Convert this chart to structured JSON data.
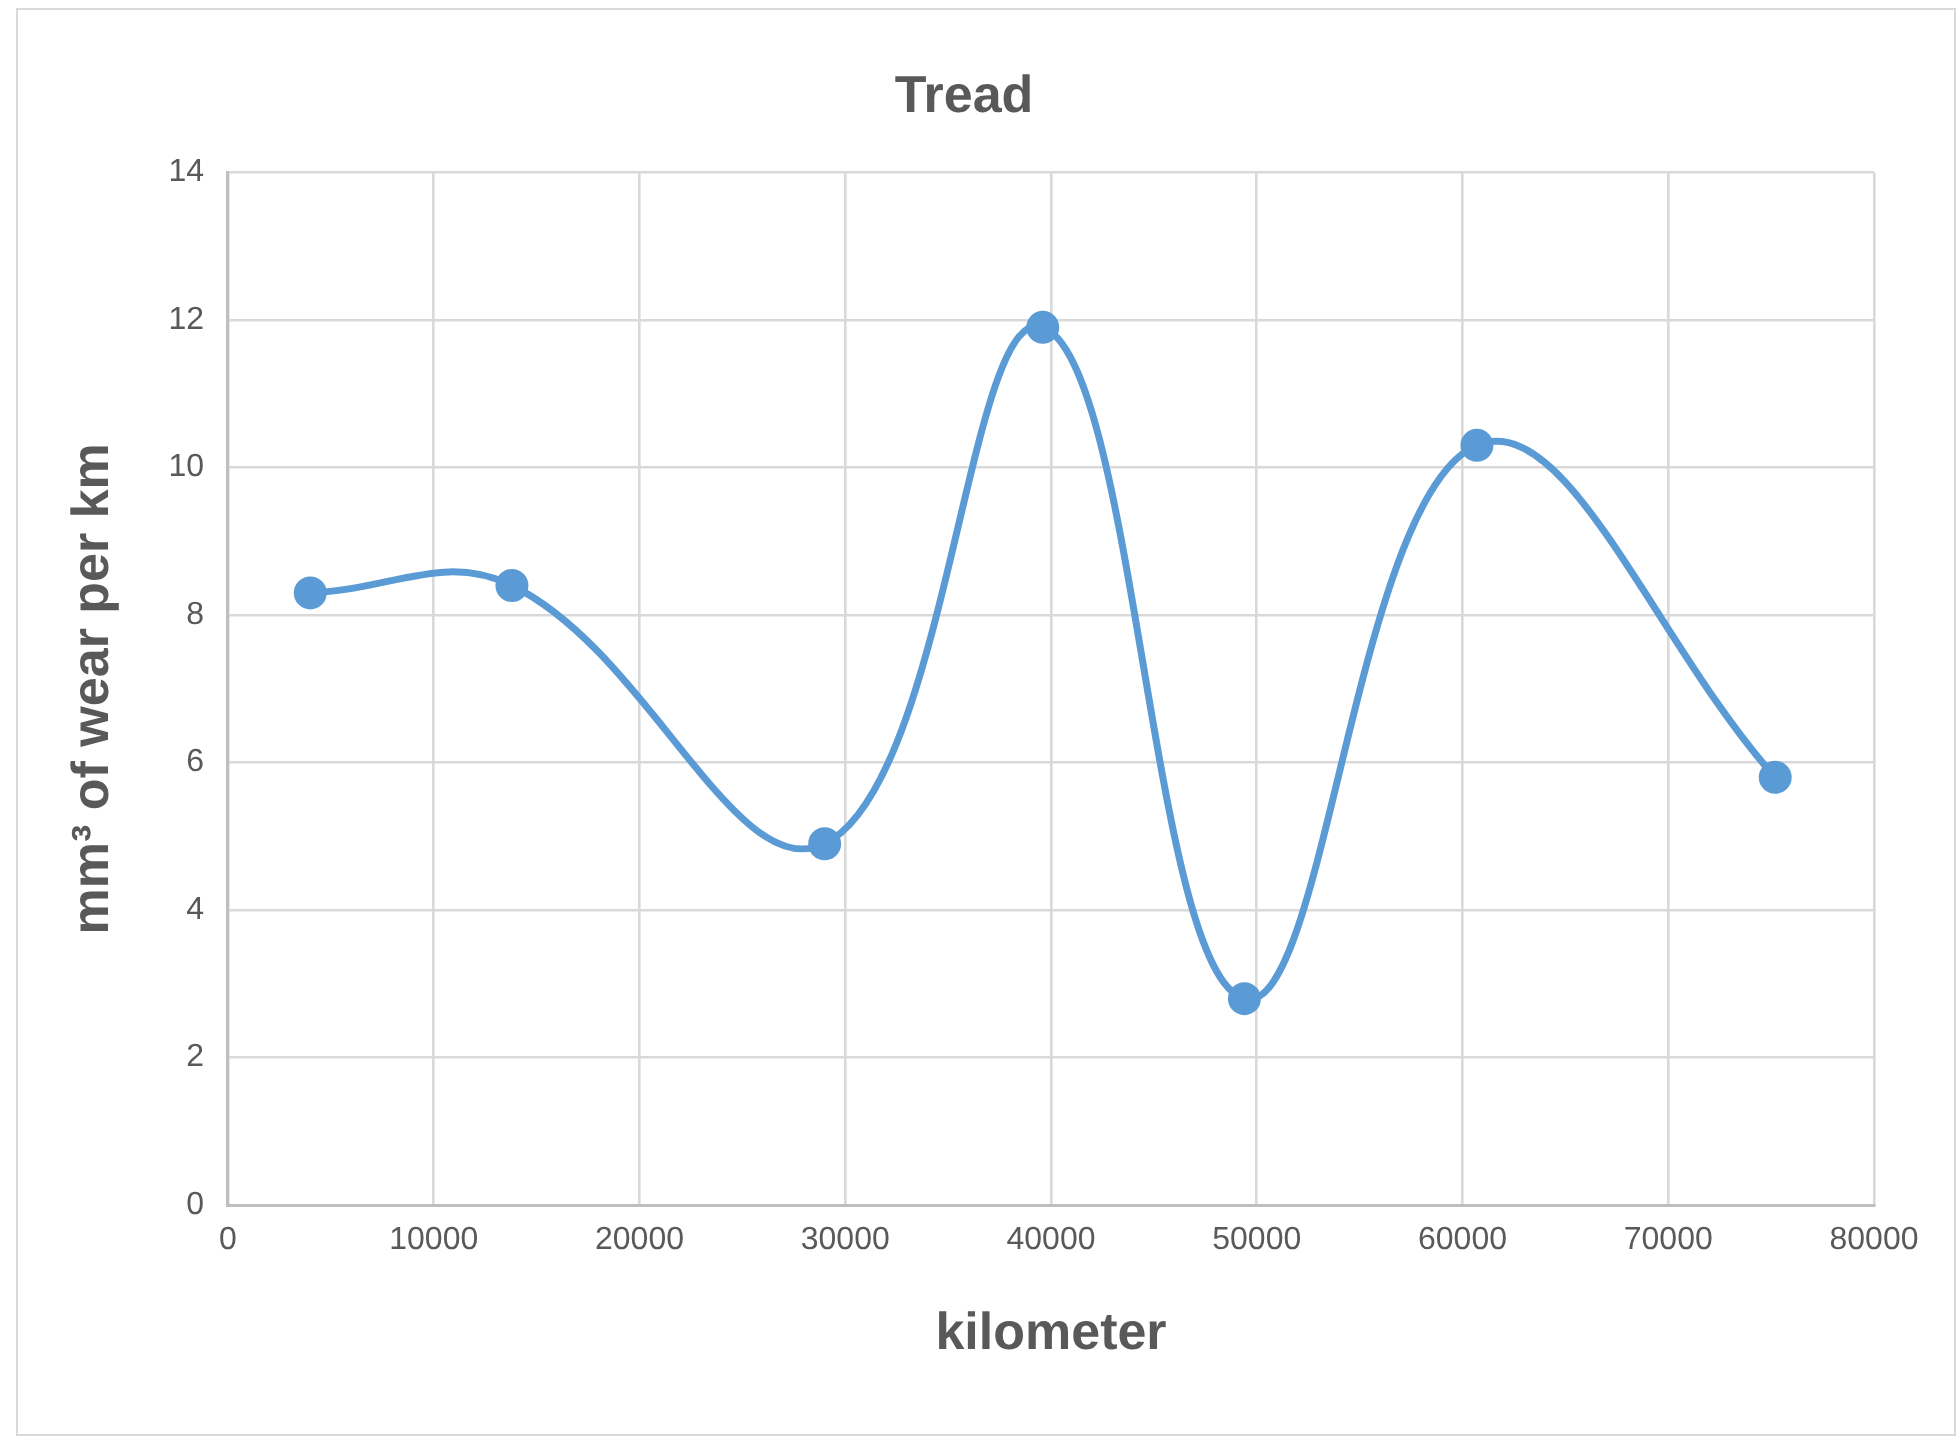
{
  "chart_data": {
    "type": "line",
    "title": "Tread",
    "xlabel": "kilometer",
    "ylabel": "mm³ of wear per km",
    "x": [
      4000,
      13800,
      29000,
      39600,
      49400,
      60700,
      75200
    ],
    "series": [
      {
        "color": "#5b9bd5",
        "values": [
          8.3,
          8.4,
          4.9,
          11.9,
          2.8,
          10.3,
          5.8
        ]
      }
    ],
    "xlim": [
      0,
      80000
    ],
    "xticks": [
      0,
      10000,
      20000,
      30000,
      40000,
      50000,
      60000,
      70000,
      80000
    ],
    "ylim": [
      0,
      14
    ],
    "yticks": [
      0,
      2,
      4,
      6,
      8,
      10,
      12,
      14
    ],
    "grid": true,
    "legend": false,
    "marker": "circle",
    "line_style": "solid"
  }
}
